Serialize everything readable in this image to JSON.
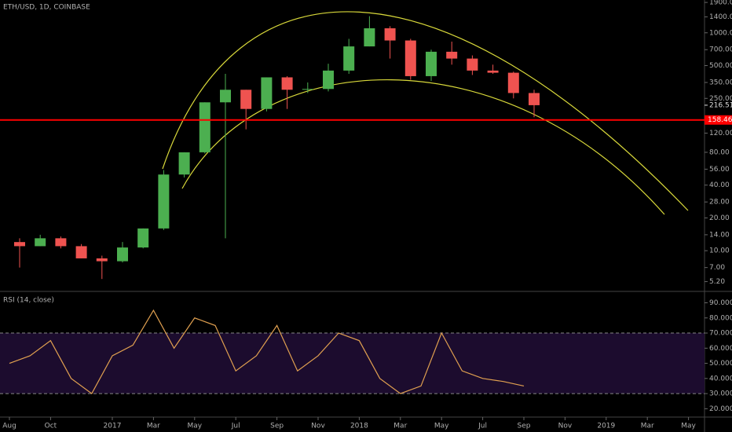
{
  "chart_data": [
    {
      "type": "candlestick",
      "title": "ETH/USD, 1D, COINBASE",
      "log_scale": true,
      "x": [
        "2016-08",
        "2016-09",
        "2016-10",
        "2016-11",
        "2016-12",
        "2017-01",
        "2017-02",
        "2017-03",
        "2017-04",
        "2017-05",
        "2017-06",
        "2017-07",
        "2017-08",
        "2017-09",
        "2017-10",
        "2017-11",
        "2017-12",
        "2018-01",
        "2018-02",
        "2018-03",
        "2018-04",
        "2018-05",
        "2018-06",
        "2018-07",
        "2018-08",
        "2018-09"
      ],
      "open": [
        12,
        11,
        13,
        11,
        8.5,
        8,
        10.7,
        16,
        50,
        80,
        230,
        300,
        200,
        390,
        300,
        305,
        450,
        750,
        1100,
        850,
        400,
        670,
        580,
        450,
        430,
        280
      ],
      "high": [
        13,
        14,
        13.5,
        11.5,
        9,
        12,
        16,
        55,
        80,
        230,
        420,
        300,
        390,
        400,
        350,
        520,
        880,
        1420,
        1150,
        880,
        700,
        830,
        620,
        510,
        440,
        300
      ],
      "low": [
        7,
        11,
        10.5,
        8.5,
        5.5,
        7.8,
        10.5,
        15.5,
        47,
        78,
        13,
        130,
        190,
        200,
        280,
        290,
        420,
        750,
        580,
        370,
        360,
        510,
        410,
        420,
        250,
        168
      ],
      "close": [
        11,
        13,
        11,
        8.5,
        8,
        10.7,
        16,
        50,
        80,
        230,
        300,
        200,
        390,
        300,
        305,
        450,
        750,
        1100,
        850,
        400,
        670,
        580,
        450,
        430,
        280,
        216.51
      ],
      "up_color": "#4caf50",
      "down_color": "#ef5350",
      "ylim": [
        4.3,
        2000
      ],
      "yticks": [
        {
          "value": 1900,
          "label": "1900.00"
        },
        {
          "value": 1400,
          "label": "1400.00"
        },
        {
          "value": 1000,
          "label": "1000.00"
        },
        {
          "value": 700,
          "label": "700.00"
        },
        {
          "value": 500,
          "label": "500.00"
        },
        {
          "value": 350,
          "label": "350.00"
        },
        {
          "value": 250,
          "label": "250.00"
        },
        {
          "value": 120,
          "label": "120.00"
        },
        {
          "value": 80,
          "label": "80.00"
        },
        {
          "value": 56,
          "label": "56.00"
        },
        {
          "value": 40,
          "label": "40.00"
        },
        {
          "value": 28,
          "label": "28.00"
        },
        {
          "value": 20,
          "label": "20.00"
        },
        {
          "value": 14,
          "label": "14.00"
        },
        {
          "value": 10,
          "label": "10.00"
        },
        {
          "value": 7,
          "label": "7.00"
        },
        {
          "value": 5.2,
          "label": "5.20"
        }
      ],
      "last_price": {
        "value": 216.51,
        "label": "216.51"
      },
      "hline": {
        "value": 158.46,
        "label": "158.46",
        "color": "#ff0000"
      }
    },
    {
      "type": "line",
      "title": "RSI (14, close)",
      "color": "#e0a050",
      "x": [
        "2016-08",
        "2016-09",
        "2016-10",
        "2016-11",
        "2016-12",
        "2017-01",
        "2017-02",
        "2017-03",
        "2017-04",
        "2017-05",
        "2017-06",
        "2017-07",
        "2017-08",
        "2017-09",
        "2017-10",
        "2017-11",
        "2017-12",
        "2018-01",
        "2018-02",
        "2018-03",
        "2018-04",
        "2018-05",
        "2018-06",
        "2018-07",
        "2018-08",
        "2018-09"
      ],
      "values": [
        50,
        55,
        65,
        40,
        30,
        55,
        62,
        85,
        60,
        80,
        75,
        45,
        55,
        75,
        45,
        55,
        70,
        65,
        40,
        30,
        35,
        70,
        45,
        40,
        38,
        35
      ],
      "bands": [
        30,
        70
      ],
      "band_color": "#1c0c2e",
      "ylim": [
        15,
        97
      ],
      "yticks": [
        {
          "value": 90,
          "label": "90.0000"
        },
        {
          "value": 80,
          "label": "80.0000"
        },
        {
          "value": 70,
          "label": "70.0000"
        },
        {
          "value": 60,
          "label": "60.0000"
        },
        {
          "value": 50,
          "label": "50.0000"
        },
        {
          "value": 40,
          "label": "40.0000"
        },
        {
          "value": 30,
          "label": "30.0000"
        },
        {
          "value": 20,
          "label": "20.0000"
        }
      ],
      "xticks": [
        {
          "value": "2016-08",
          "label": "Aug"
        },
        {
          "value": "2016-10",
          "label": "Oct"
        },
        {
          "value": "2017-01",
          "label": "2017"
        },
        {
          "value": "2017-03",
          "label": "Mar"
        },
        {
          "value": "2017-05",
          "label": "May"
        },
        {
          "value": "2017-07",
          "label": "Jul"
        },
        {
          "value": "2017-09",
          "label": "Sep"
        },
        {
          "value": "2017-11",
          "label": "Nov"
        },
        {
          "value": "2018-01",
          "label": "2018"
        },
        {
          "value": "2018-03",
          "label": "Mar"
        },
        {
          "value": "2018-05",
          "label": "May"
        },
        {
          "value": "2018-07",
          "label": "Jul"
        },
        {
          "value": "2018-09",
          "label": "Sep"
        },
        {
          "value": "2018-11",
          "label": "Nov"
        },
        {
          "value": "2019-01",
          "label": "2019"
        },
        {
          "value": "2019-03",
          "label": "Mar"
        },
        {
          "value": "2019-05",
          "label": "May"
        }
      ]
    }
  ]
}
